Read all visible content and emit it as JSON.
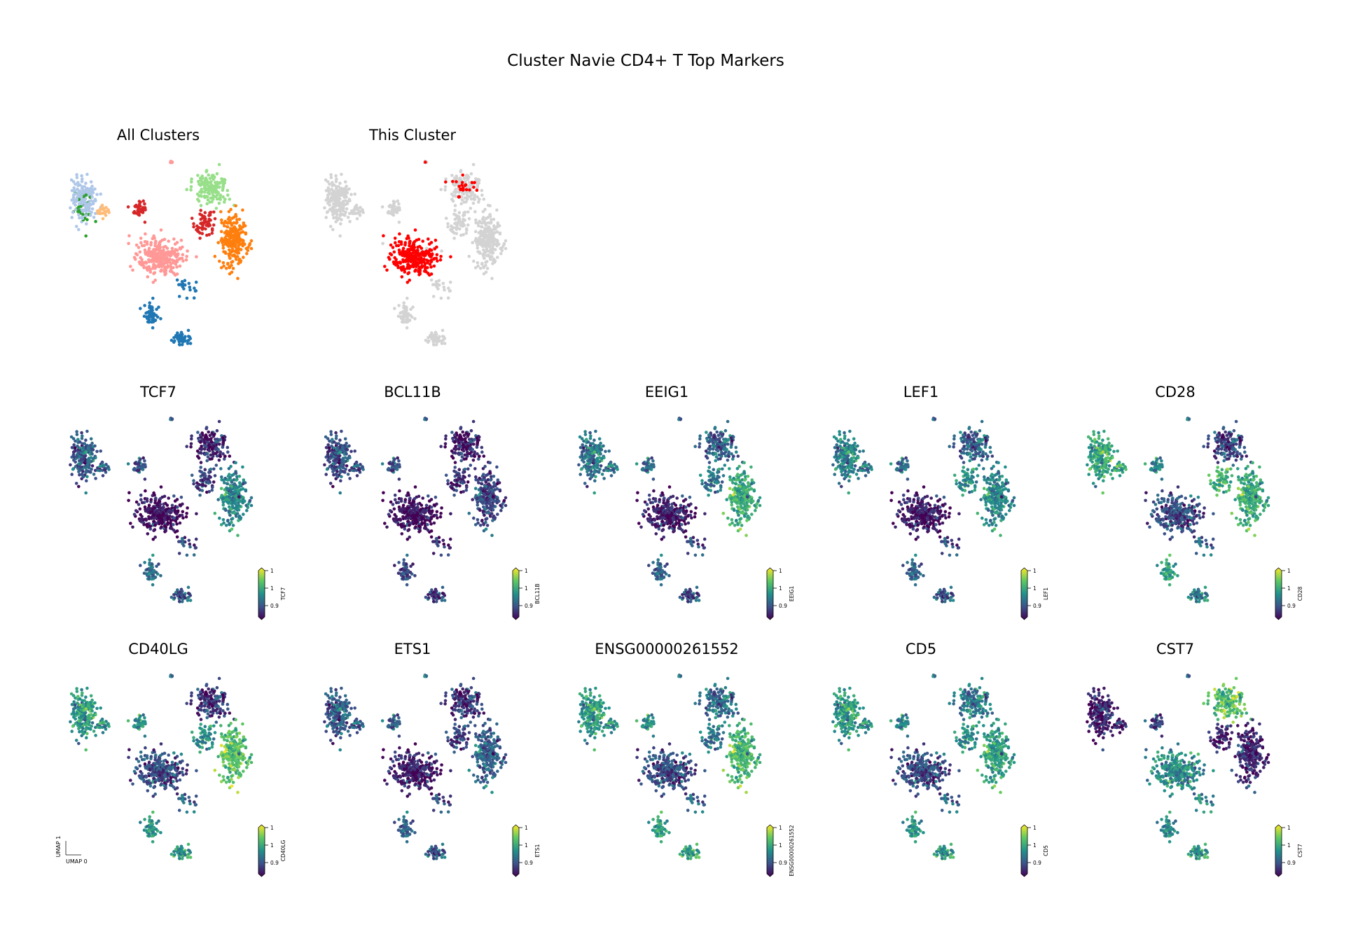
{
  "chart_data": {
    "type": "scatter",
    "title": "Cluster Navie CD4+ T Top Markers",
    "xlabel": "UMAP 0",
    "ylabel": "UMAP 1",
    "xlim": [
      0,
      10
    ],
    "ylim": [
      0,
      10
    ],
    "colorbar_ticks": [
      "1",
      "1",
      "0.9"
    ],
    "highlight_color": "#ff0000",
    "background_color": "#d3d3d3",
    "panels": [
      {
        "title": "All Clusters",
        "kind": "category"
      },
      {
        "title": "This Cluster",
        "kind": "highlight"
      },
      {
        "title": "TCF7",
        "kind": "gene",
        "gene": 0
      },
      {
        "title": "BCL11B",
        "kind": "gene",
        "gene": 1
      },
      {
        "title": "EEIG1",
        "kind": "gene",
        "gene": 2
      },
      {
        "title": "LEF1",
        "kind": "gene",
        "gene": 3
      },
      {
        "title": "CD28",
        "kind": "gene",
        "gene": 4
      },
      {
        "title": "CD40LG",
        "kind": "gene",
        "gene": 5
      },
      {
        "title": "ETS1",
        "kind": "gene",
        "gene": 6
      },
      {
        "title": "ENSG00000261552",
        "kind": "gene",
        "gene": 7
      },
      {
        "title": "CD5",
        "kind": "gene",
        "gene": 8
      },
      {
        "title": "CST7",
        "kind": "gene",
        "gene": 9
      }
    ],
    "clusters": [
      {
        "x": 1.0,
        "y": 8.0,
        "sx": 0.55,
        "sy": 0.9,
        "n": 170,
        "color": "#aec7e8",
        "in_cluster": 0
      },
      {
        "x": 2.0,
        "y": 7.3,
        "sx": 0.25,
        "sy": 0.3,
        "n": 25,
        "color": "#ffbb78",
        "in_cluster": 0
      },
      {
        "x": 0.9,
        "y": 7.6,
        "sx": 0.5,
        "sy": 0.8,
        "n": 25,
        "color": "#2ca02c",
        "in_cluster": 0
      },
      {
        "x": 4.0,
        "y": 7.4,
        "sx": 0.3,
        "sy": 0.35,
        "n": 40,
        "color": "#d62728",
        "in_cluster": 0
      },
      {
        "x": 5.1,
        "y": 4.9,
        "sx": 1.0,
        "sy": 0.8,
        "n": 260,
        "color": "#ff9896",
        "in_cluster": 0.95
      },
      {
        "x": 7.8,
        "y": 8.5,
        "sx": 0.8,
        "sy": 0.7,
        "n": 150,
        "color": "#98df8a",
        "in_cluster": 0.15
      },
      {
        "x": 9.0,
        "y": 5.8,
        "sx": 0.6,
        "sy": 1.1,
        "n": 220,
        "color": "#ff7f0e",
        "in_cluster": 0
      },
      {
        "x": 7.5,
        "y": 6.6,
        "sx": 0.5,
        "sy": 0.5,
        "n": 60,
        "color": "#d62728",
        "in_cluster": 0
      },
      {
        "x": 4.6,
        "y": 1.8,
        "sx": 0.35,
        "sy": 0.5,
        "n": 50,
        "color": "#1f77b4",
        "in_cluster": 0
      },
      {
        "x": 6.2,
        "y": 0.5,
        "sx": 0.4,
        "sy": 0.3,
        "n": 50,
        "color": "#1f77b4",
        "in_cluster": 0
      },
      {
        "x": 6.5,
        "y": 3.3,
        "sx": 0.5,
        "sy": 0.6,
        "n": 20,
        "color": "#1f77b4",
        "in_cluster": 0
      },
      {
        "x": 5.7,
        "y": 9.9,
        "sx": 0.08,
        "sy": 0.12,
        "n": 6,
        "color": "#ff9896",
        "in_cluster": 0.6
      }
    ],
    "gene_levels": [
      [
        0.3,
        0.3,
        0.3,
        0.25,
        0.05,
        0.1,
        0.45,
        0.2,
        0.35,
        0.3,
        0.2,
        0.3
      ],
      [
        0.25,
        0.25,
        0.25,
        0.25,
        0.05,
        0.08,
        0.2,
        0.15,
        0.2,
        0.2,
        0.1,
        0.3
      ],
      [
        0.4,
        0.4,
        0.4,
        0.35,
        0.1,
        0.3,
        0.6,
        0.4,
        0.3,
        0.25,
        0.2,
        0.3
      ],
      [
        0.45,
        0.4,
        0.45,
        0.35,
        0.08,
        0.3,
        0.45,
        0.5,
        0.3,
        0.3,
        0.2,
        0.3
      ],
      [
        0.6,
        0.6,
        0.6,
        0.45,
        0.25,
        0.2,
        0.6,
        0.65,
        0.55,
        0.45,
        0.3,
        0.4
      ],
      [
        0.55,
        0.5,
        0.55,
        0.5,
        0.25,
        0.15,
        0.7,
        0.5,
        0.5,
        0.55,
        0.3,
        0.35
      ],
      [
        0.3,
        0.3,
        0.3,
        0.3,
        0.1,
        0.15,
        0.3,
        0.2,
        0.3,
        0.3,
        0.2,
        0.4
      ],
      [
        0.55,
        0.5,
        0.55,
        0.5,
        0.25,
        0.35,
        0.65,
        0.4,
        0.55,
        0.6,
        0.3,
        0.4
      ],
      [
        0.55,
        0.5,
        0.55,
        0.45,
        0.25,
        0.4,
        0.55,
        0.5,
        0.5,
        0.55,
        0.3,
        0.4
      ],
      [
        0.1,
        0.1,
        0.1,
        0.2,
        0.5,
        0.7,
        0.1,
        0.1,
        0.45,
        0.55,
        0.45,
        0.3
      ]
    ]
  }
}
